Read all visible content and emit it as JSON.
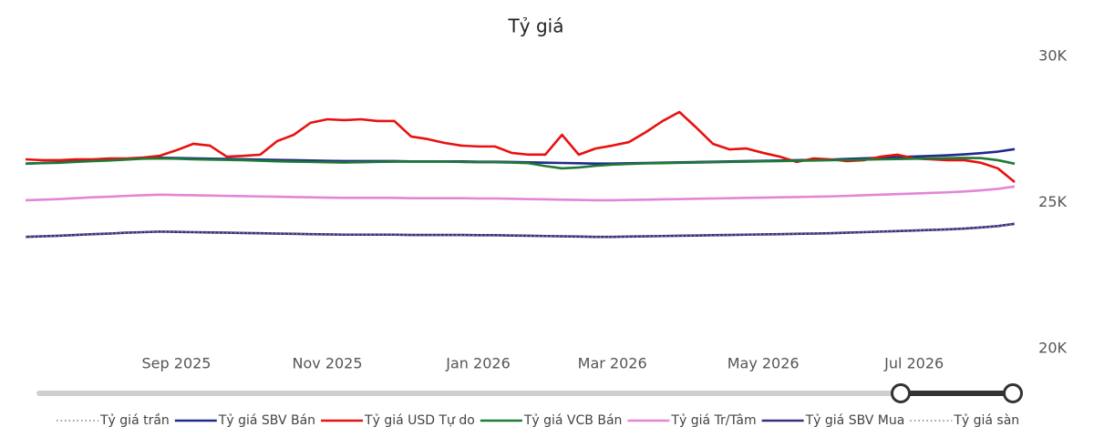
{
  "chart_data": {
    "type": "line",
    "title": "Tỷ giá",
    "categories": [
      null,
      null,
      null,
      null,
      null,
      null,
      null,
      null,
      null,
      "Sep 2025",
      null,
      null,
      null,
      null,
      null,
      null,
      null,
      null,
      "Nov 2025",
      null,
      null,
      null,
      null,
      null,
      null,
      null,
      null,
      "Jan 2026",
      null,
      null,
      null,
      null,
      null,
      null,
      null,
      "Mar 2026",
      null,
      null,
      null,
      null,
      null,
      null,
      null,
      null,
      "May 2026",
      null,
      null,
      null,
      null,
      null,
      null,
      null,
      null,
      "Jul 2026",
      null,
      null,
      null,
      null,
      null,
      null
    ],
    "ylim": [
      20000,
      30000
    ],
    "yticks": [
      {
        "value": 20000,
        "label": "20K"
      },
      {
        "value": 25000,
        "label": "25K"
      },
      {
        "value": 30000,
        "label": "30K"
      }
    ],
    "y_axis_side": "right",
    "grid": false,
    "legend": "bottom",
    "series": [
      {
        "name": "Tỷ giá trần",
        "color": "#8c8c9c",
        "style": "dotted",
        "values": [
          26334,
          26355,
          26376,
          26408,
          26439,
          26460,
          26492,
          26513,
          26534,
          26523,
          26513,
          26502,
          26492,
          26481,
          26471,
          26460,
          26450,
          26439,
          26429,
          26418,
          26418,
          26418,
          26418,
          26408,
          26408,
          26408,
          26408,
          26397,
          26397,
          26387,
          26376,
          26366,
          26355,
          26345,
          26334,
          26334,
          26345,
          26355,
          26366,
          26376,
          26387,
          26397,
          26408,
          26418,
          26429,
          26439,
          26450,
          26460,
          26471,
          26492,
          26513,
          26534,
          26555,
          26576,
          26597,
          26618,
          26649,
          26691,
          26744,
          26828
        ]
      },
      {
        "name": "Tỷ giá SBV Bán",
        "color": "#1f2a8a",
        "style": "solid",
        "values": [
          26334,
          26355,
          26376,
          26408,
          26439,
          26460,
          26492,
          26513,
          26534,
          26523,
          26513,
          26502,
          26492,
          26481,
          26471,
          26460,
          26450,
          26439,
          26429,
          26418,
          26418,
          26418,
          26418,
          26408,
          26408,
          26408,
          26408,
          26397,
          26397,
          26387,
          26376,
          26366,
          26355,
          26345,
          26334,
          26334,
          26345,
          26355,
          26366,
          26376,
          26387,
          26397,
          26408,
          26418,
          26429,
          26439,
          26450,
          26460,
          26471,
          26492,
          26513,
          26534,
          26555,
          26576,
          26597,
          26618,
          26649,
          26691,
          26744,
          26828
        ]
      },
      {
        "name": "Tỷ giá USD Tự do",
        "color": "#e8110f",
        "style": "solid",
        "values": [
          26480,
          26450,
          26450,
          26480,
          26480,
          26510,
          26510,
          26540,
          26600,
          26790,
          27010,
          26950,
          26570,
          26600,
          26640,
          27100,
          27320,
          27730,
          27850,
          27820,
          27850,
          27790,
          27790,
          27260,
          27170,
          27040,
          26950,
          26920,
          26920,
          26700,
          26640,
          26640,
          27320,
          26640,
          26850,
          26950,
          27070,
          27410,
          27790,
          28100,
          27570,
          27010,
          26820,
          26850,
          26700,
          26570,
          26390,
          26510,
          26480,
          26420,
          26450,
          26570,
          26640,
          26510,
          26480,
          26450,
          26450,
          26360,
          26170,
          25700
        ]
      },
      {
        "name": "Tỷ giá VCB Bán",
        "color": "#1e7a34",
        "style": "solid",
        "values": [
          26330,
          26350,
          26360,
          26390,
          26420,
          26440,
          26470,
          26500,
          26510,
          26500,
          26480,
          26470,
          26460,
          26450,
          26430,
          26410,
          26400,
          26390,
          26380,
          26370,
          26380,
          26390,
          26400,
          26400,
          26400,
          26400,
          26390,
          26380,
          26380,
          26370,
          26350,
          26250,
          26170,
          26200,
          26260,
          26300,
          26320,
          26340,
          26350,
          26360,
          26370,
          26380,
          26390,
          26400,
          26410,
          26420,
          26430,
          26440,
          26450,
          26460,
          26470,
          26480,
          26490,
          26500,
          26510,
          26520,
          26530,
          26520,
          26450,
          26330
        ]
      },
      {
        "name": "Tỷ giá Tr/Tâm",
        "color": "#e286d6",
        "style": "solid",
        "values": [
          25080,
          25100,
          25120,
          25150,
          25180,
          25200,
          25230,
          25250,
          25270,
          25260,
          25250,
          25240,
          25230,
          25220,
          25210,
          25200,
          25190,
          25180,
          25170,
          25160,
          25160,
          25160,
          25160,
          25150,
          25150,
          25150,
          25150,
          25140,
          25140,
          25130,
          25120,
          25110,
          25100,
          25090,
          25080,
          25080,
          25090,
          25100,
          25110,
          25120,
          25130,
          25140,
          25150,
          25160,
          25170,
          25180,
          25190,
          25200,
          25210,
          25230,
          25250,
          25270,
          25290,
          25310,
          25330,
          25350,
          25380,
          25420,
          25470,
          25550
        ]
      },
      {
        "name": "Tỷ giá SBV Mua",
        "color": "#3b2d7c",
        "style": "solid",
        "values": [
          23826,
          23845,
          23864,
          23893,
          23921,
          23940,
          23969,
          23988,
          24007,
          23997,
          23988,
          23978,
          23969,
          23959,
          23950,
          23940,
          23931,
          23921,
          23912,
          23902,
          23902,
          23902,
          23902,
          23893,
          23893,
          23893,
          23893,
          23883,
          23883,
          23874,
          23864,
          23855,
          23845,
          23836,
          23826,
          23826,
          23836,
          23845,
          23855,
          23864,
          23874,
          23883,
          23893,
          23902,
          23912,
          23921,
          23931,
          23940,
          23950,
          23969,
          23988,
          24007,
          24026,
          24045,
          24064,
          24083,
          24111,
          24149,
          24197,
          24273
        ]
      },
      {
        "name": "Tỷ giá sàn",
        "color": "#8c8c9c",
        "style": "dotted",
        "values": [
          23826,
          23845,
          23864,
          23893,
          23921,
          23940,
          23969,
          23988,
          24007,
          23997,
          23988,
          23978,
          23969,
          23959,
          23950,
          23940,
          23931,
          23921,
          23912,
          23902,
          23902,
          23902,
          23902,
          23893,
          23893,
          23893,
          23893,
          23883,
          23883,
          23874,
          23864,
          23855,
          23845,
          23836,
          23826,
          23826,
          23836,
          23845,
          23855,
          23864,
          23874,
          23883,
          23893,
          23902,
          23912,
          23921,
          23931,
          23940,
          23950,
          23969,
          23988,
          24007,
          24026,
          24045,
          24064,
          24083,
          24111,
          24149,
          24197,
          24273
        ]
      }
    ]
  }
}
